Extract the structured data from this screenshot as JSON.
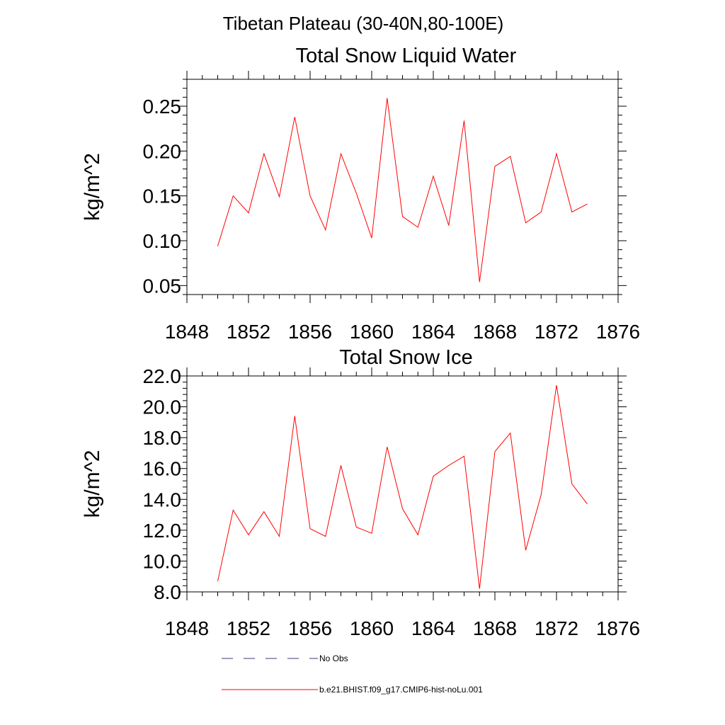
{
  "suptitle": "Tibetan Plateau (30-40N,80-100E)",
  "chart_data": [
    {
      "type": "line",
      "title": "Total Snow Liquid Water",
      "xlabel": "",
      "ylabel": "kg/m^2",
      "xlim": [
        1848,
        1876
      ],
      "ylim": [
        0.04,
        0.28
      ],
      "x_ticks": [
        "1848",
        "1852",
        "1856",
        "1860",
        "1864",
        "1868",
        "1872",
        "1876"
      ],
      "y_ticks": [
        "0.05",
        "0.10",
        "0.15",
        "0.20",
        "0.25"
      ],
      "grid": false,
      "x": [
        1850,
        1851,
        1852,
        1853,
        1854,
        1855,
        1856,
        1857,
        1858,
        1859,
        1860,
        1861,
        1862,
        1863,
        1864,
        1865,
        1866,
        1867,
        1868,
        1869,
        1870,
        1871,
        1872,
        1873,
        1874
      ],
      "series": [
        {
          "name": "b.e21.BHIST.f09_g17.CMIP6-hist-noLu.001",
          "color": "#ff0000",
          "values": [
            0.094,
            0.15,
            0.131,
            0.197,
            0.149,
            0.238,
            0.15,
            0.112,
            0.197,
            0.153,
            0.103,
            0.259,
            0.127,
            0.115,
            0.172,
            0.117,
            0.234,
            0.054,
            0.183,
            0.194,
            0.12,
            0.132,
            0.197,
            0.132,
            0.141
          ]
        }
      ]
    },
    {
      "type": "line",
      "title": "Total Snow Ice",
      "xlabel": "",
      "ylabel": "kg/m^2",
      "xlim": [
        1848,
        1876
      ],
      "ylim": [
        8.0,
        22.0
      ],
      "x_ticks": [
        "1848",
        "1852",
        "1856",
        "1860",
        "1864",
        "1868",
        "1872",
        "1876"
      ],
      "y_ticks": [
        "8.0",
        "10.0",
        "12.0",
        "14.0",
        "16.0",
        "18.0",
        "20.0",
        "22.0"
      ],
      "grid": false,
      "x": [
        1850,
        1851,
        1852,
        1853,
        1854,
        1855,
        1856,
        1857,
        1858,
        1859,
        1860,
        1861,
        1862,
        1863,
        1864,
        1865,
        1866,
        1867,
        1868,
        1869,
        1870,
        1871,
        1872,
        1873,
        1874
      ],
      "series": [
        {
          "name": "b.e21.BHIST.f09_g17.CMIP6-hist-noLu.001",
          "color": "#ff0000",
          "values": [
            8.7,
            13.3,
            11.7,
            13.2,
            11.6,
            19.4,
            12.1,
            11.6,
            16.2,
            12.2,
            11.8,
            17.4,
            13.4,
            11.7,
            15.5,
            16.2,
            16.8,
            8.2,
            17.1,
            18.3,
            10.7,
            14.3,
            21.4,
            15.0,
            13.7
          ]
        }
      ]
    }
  ],
  "legend": [
    {
      "label": "No Obs",
      "style": "dashed",
      "color": "#3a3a7a"
    },
    {
      "label": "b.e21.BHIST.f09_g17.CMIP6-hist-noLu.001",
      "style": "solid",
      "color": "#ff0000"
    }
  ]
}
